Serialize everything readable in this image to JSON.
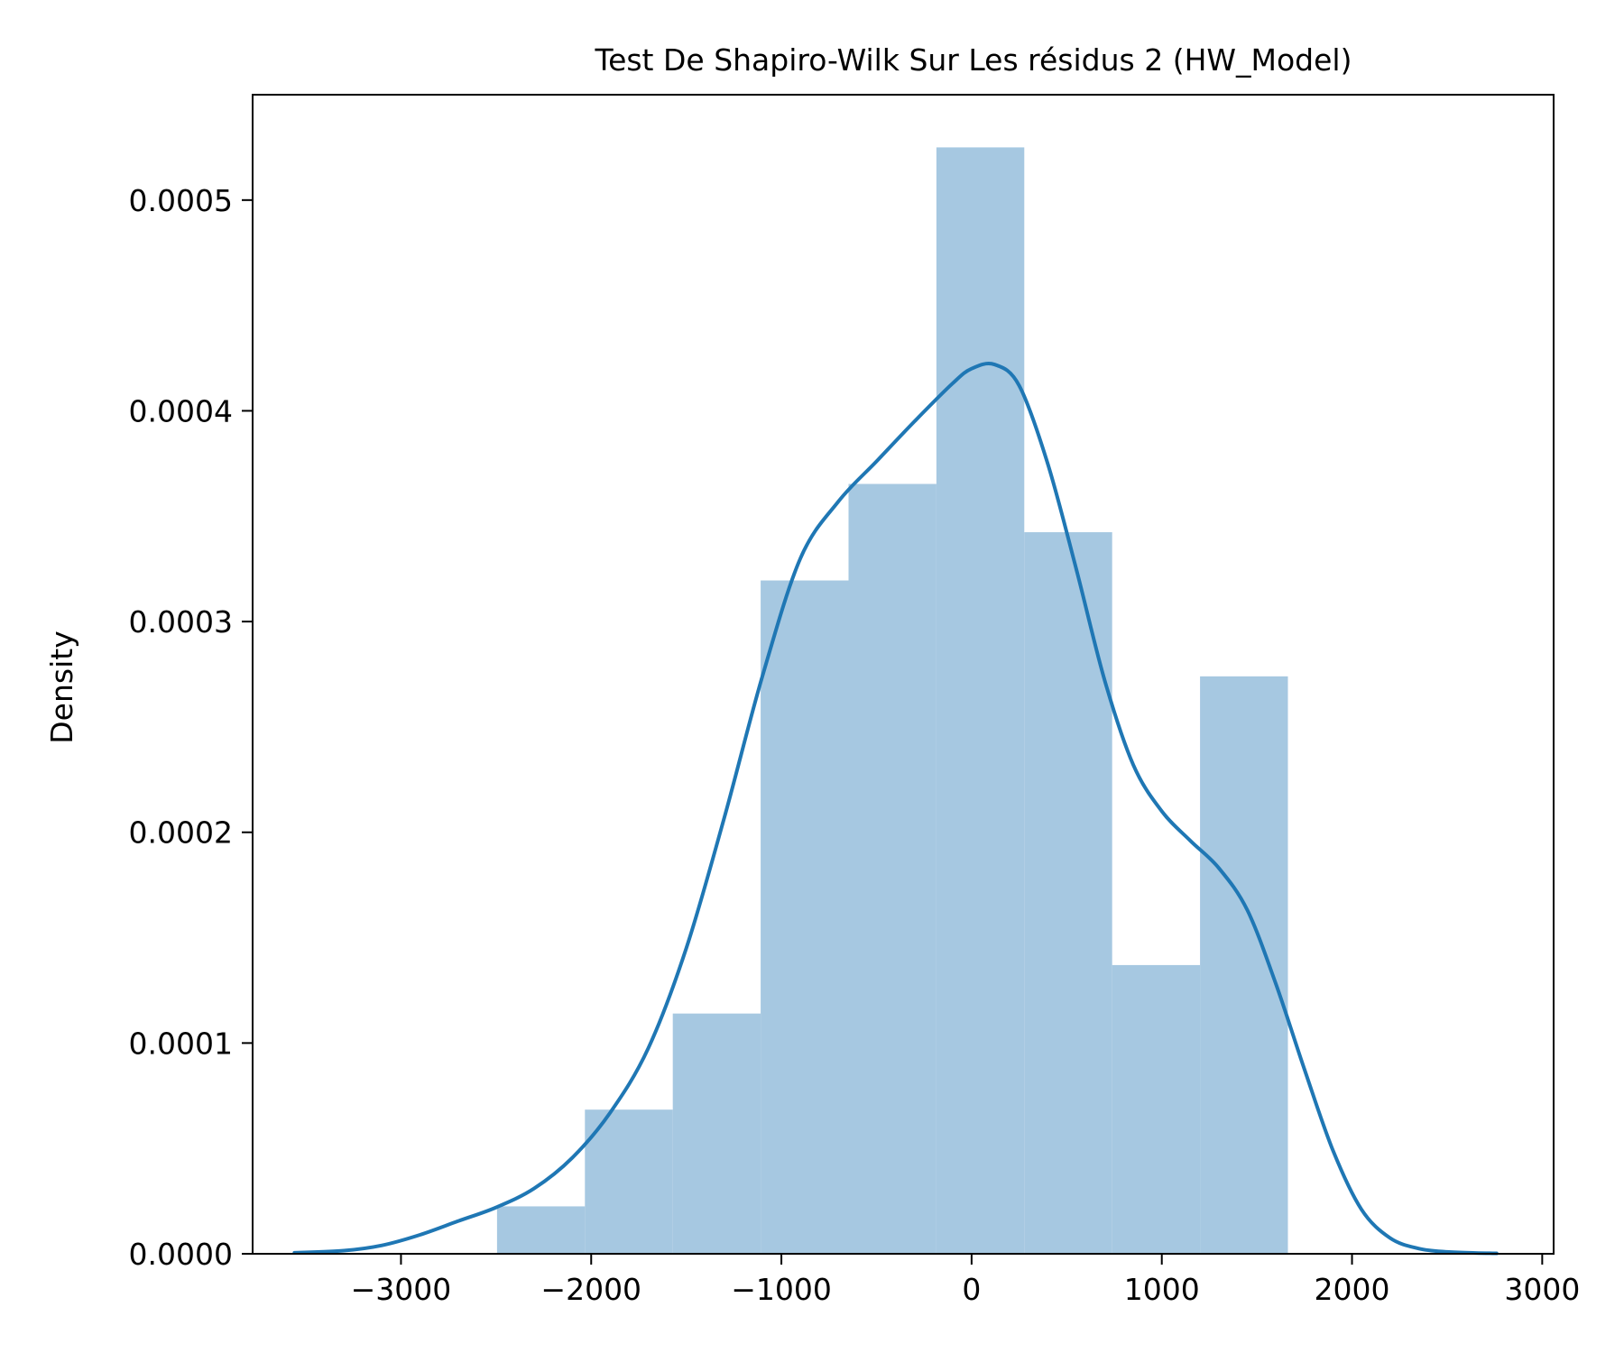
{
  "chart_data": {
    "type": "histogram",
    "title": "Test De Shapiro-Wilk Sur Les résidus 2 (HW_Model)",
    "xlabel": "",
    "ylabel": "Density",
    "xlim": [
      -3780,
      3060
    ],
    "ylim": [
      0,
      0.00055
    ],
    "x_ticks": [
      -3000,
      -2000,
      -1000,
      0,
      1000,
      2000,
      3000
    ],
    "x_tick_labels": [
      "−3000",
      "−2000",
      "−1000",
      "0",
      "1000",
      "2000",
      "3000"
    ],
    "y_ticks": [
      0,
      0.0001,
      0.0002,
      0.0003,
      0.0004,
      0.0005
    ],
    "y_tick_labels": [
      "0.0000",
      "0.0001",
      "0.0002",
      "0.0003",
      "0.0004",
      "0.0005"
    ],
    "grid": false,
    "bins": [
      {
        "x0": -2495,
        "x1": -2033,
        "density": 2.25e-05
      },
      {
        "x0": -2033,
        "x1": -1571,
        "density": 6.84e-05
      },
      {
        "x0": -1571,
        "x1": -1109,
        "density": 0.000114
      },
      {
        "x0": -1109,
        "x1": -647,
        "density": 0.0003195
      },
      {
        "x0": -647,
        "x1": -185,
        "density": 0.0003653
      },
      {
        "x0": -185,
        "x1": 277,
        "density": 0.000525
      },
      {
        "x0": 277,
        "x1": 739,
        "density": 0.0003424
      },
      {
        "x0": 739,
        "x1": 1201,
        "density": 0.000137
      },
      {
        "x0": 1201,
        "x1": 1663,
        "density": 0.000274
      }
    ],
    "kde": {
      "x": [
        -3560,
        -3300,
        -3100,
        -2900,
        -2700,
        -2500,
        -2300,
        -2100,
        -1900,
        -1700,
        -1500,
        -1300,
        -1100,
        -900,
        -700,
        -500,
        -300,
        -100,
        0,
        120,
        250,
        400,
        550,
        700,
        850,
        1000,
        1150,
        1300,
        1450,
        1600,
        1750,
        1900,
        2050,
        2200,
        2350,
        2500,
        2650,
        2760
      ],
      "y": [
        5e-07,
        1.5e-06,
        4e-06,
        9e-06,
        1.55e-05,
        2.2e-05,
        3.1e-05,
        4.55e-05,
        6.7e-05,
        9.75e-05,
        0.000145,
        0.000207,
        0.000274,
        0.00033,
        0.000357,
        0.000376,
        0.000395,
        0.000413,
        0.00042,
        0.000422,
        0.000412,
        0.000375,
        0.000325,
        0.000272,
        0.000232,
        0.00021,
        0.000196,
        0.000183,
        0.000163,
        0.000128,
        8.75e-05,
        4.9e-05,
        2.1e-05,
        7.5e-06,
        2.5e-06,
        9e-07,
        4e-07,
        2e-07
      ]
    },
    "colors": {
      "bar": "#a6c8e1",
      "line": "#1f77b4",
      "axes": "#000000"
    }
  }
}
